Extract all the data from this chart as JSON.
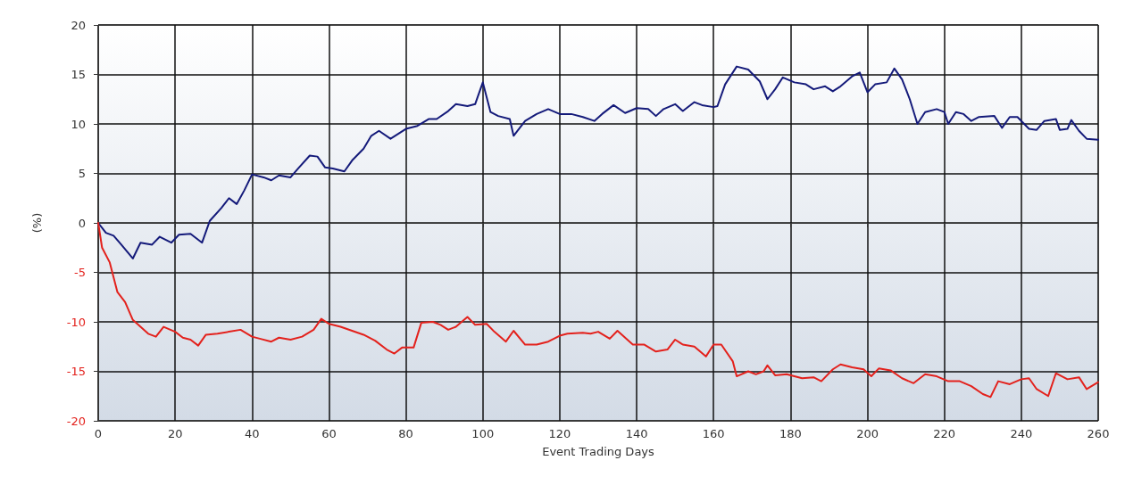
{
  "chart_data": {
    "type": "line",
    "xlabel": "Event Trading Days",
    "ylabel": "(%)",
    "xlim": [
      0,
      260
    ],
    "xticks": [
      0,
      20,
      40,
      60,
      80,
      100,
      120,
      140,
      160,
      180,
      200,
      220,
      240,
      260
    ],
    "ylim": [
      -20,
      20
    ],
    "yticks": [
      -20,
      -15,
      -10,
      -5,
      0,
      5,
      10,
      15,
      20
    ],
    "grid": true,
    "marker": "none",
    "line_style": "solid",
    "series": [
      {
        "color": "#141a7a",
        "x": [
          0,
          2,
          4,
          6,
          9,
          11,
          14,
          16,
          19,
          21,
          24,
          27,
          29,
          32,
          34,
          36,
          38,
          40,
          43,
          45,
          47,
          50,
          52,
          55,
          57,
          59,
          61,
          64,
          66,
          69,
          71,
          73,
          76,
          78,
          80,
          83,
          86,
          88,
          91,
          93,
          96,
          98,
          100,
          102,
          104,
          107,
          108,
          111,
          114,
          117,
          120,
          123,
          126,
          129,
          131,
          134,
          137,
          140,
          143,
          145,
          147,
          150,
          152,
          155,
          157,
          160,
          161,
          163,
          166,
          169,
          172,
          174,
          176,
          178,
          181,
          184,
          186,
          189,
          191,
          193,
          196,
          198,
          200,
          202,
          205,
          207,
          209,
          211,
          213,
          215,
          218,
          220,
          221,
          223,
          225,
          227,
          229,
          233,
          235,
          237,
          239,
          242,
          244,
          246,
          249,
          250,
          252,
          253,
          255,
          257,
          260
        ],
        "values": [
          0,
          -1,
          -1.3,
          -2.2,
          -3.6,
          -2,
          -2.2,
          -1.4,
          -2,
          -1.2,
          -1.1,
          -2,
          0.2,
          1.5,
          2.5,
          1.9,
          3.3,
          4.9,
          4.6,
          4.3,
          4.8,
          4.6,
          5.5,
          6.8,
          6.7,
          5.6,
          5.5,
          5.2,
          6.3,
          7.5,
          8.8,
          9.3,
          8.5,
          9,
          9.5,
          9.8,
          10.5,
          10.5,
          11.3,
          12,
          11.8,
          12,
          14.2,
          11.2,
          10.8,
          10.5,
          8.8,
          10.3,
          11,
          11.5,
          11,
          11,
          10.7,
          10.3,
          11,
          11.9,
          11.1,
          11.6,
          11.5,
          10.8,
          11.5,
          12,
          11.3,
          12.2,
          11.9,
          11.7,
          11.8,
          14,
          15.8,
          15.5,
          14.3,
          12.5,
          13.5,
          14.7,
          14.2,
          14,
          13.5,
          13.8,
          13.3,
          13.8,
          14.8,
          15.2,
          13.2,
          14,
          14.2,
          15.6,
          14.5,
          12.5,
          10,
          11.2,
          11.5,
          11.2,
          10,
          11.2,
          11,
          10.3,
          10.7,
          10.8,
          9.6,
          10.7,
          10.7,
          9.5,
          9.4,
          10.3,
          10.5,
          9.4,
          9.5,
          10.4,
          9.3,
          8.5,
          8.4
        ]
      },
      {
        "color": "#e3211c",
        "x": [
          0,
          1,
          3,
          5,
          7,
          9,
          11,
          13,
          15,
          17,
          20,
          22,
          24,
          26,
          28,
          31,
          34,
          37,
          40,
          42,
          45,
          47,
          50,
          53,
          56,
          58,
          60,
          63,
          66,
          69,
          72,
          75,
          77,
          79,
          82,
          84,
          87,
          89,
          91,
          93,
          96,
          98,
          101,
          103,
          106,
          108,
          111,
          114,
          117,
          120,
          122,
          126,
          128,
          130,
          133,
          135,
          139,
          142,
          145,
          148,
          150,
          152,
          155,
          158,
          160,
          162,
          165,
          166,
          169,
          171,
          173,
          174,
          176,
          179,
          181,
          183,
          186,
          188,
          191,
          193,
          196,
          199,
          201,
          203,
          206,
          209,
          212,
          215,
          218,
          221,
          224,
          227,
          230,
          232,
          234,
          237,
          240,
          242,
          244,
          247,
          249,
          252,
          255,
          257,
          260
        ],
        "values": [
          0,
          -2.5,
          -4,
          -7,
          -8,
          -9.8,
          -10.5,
          -11.2,
          -11.5,
          -10.5,
          -11,
          -11.6,
          -11.8,
          -12.4,
          -11.3,
          -11.2,
          -11,
          -10.8,
          -11.5,
          -11.7,
          -12,
          -11.6,
          -11.8,
          -11.5,
          -10.8,
          -9.7,
          -10.2,
          -10.5,
          -10.9,
          -11.3,
          -11.9,
          -12.8,
          -13.2,
          -12.6,
          -12.6,
          -10.1,
          -10,
          -10.3,
          -10.8,
          -10.5,
          -9.5,
          -10.3,
          -10.2,
          -11,
          -12,
          -10.9,
          -12.3,
          -12.3,
          -12,
          -11.4,
          -11.2,
          -11.1,
          -11.2,
          -11,
          -11.7,
          -10.9,
          -12.3,
          -12.3,
          -13,
          -12.8,
          -11.8,
          -12.3,
          -12.5,
          -13.5,
          -12.3,
          -12.3,
          -14,
          -15.5,
          -15,
          -15.3,
          -15,
          -14.4,
          -15.4,
          -15.3,
          -15.5,
          -15.7,
          -15.6,
          -16,
          -14.8,
          -14.3,
          -14.6,
          -14.8,
          -15.5,
          -14.7,
          -14.9,
          -15.7,
          -16.2,
          -15.3,
          -15.5,
          -16,
          -16,
          -16.5,
          -17.3,
          -17.6,
          -16,
          -16.3,
          -15.8,
          -15.7,
          -16.8,
          -17.5,
          -15.2,
          -15.8,
          -15.6,
          -16.8,
          -16.1
        ]
      }
    ]
  }
}
